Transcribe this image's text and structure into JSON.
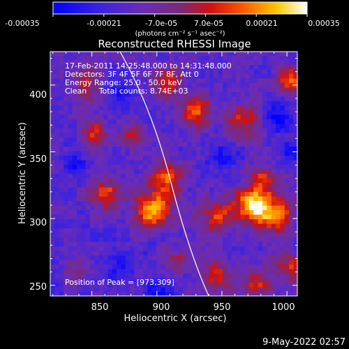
{
  "colorbar": {
    "ticks": [
      "-0.00035",
      "-0.00021",
      "-7.0e-05",
      "7.0e-05",
      "0.00021",
      "0.00035"
    ],
    "unit": "(photons cm⁻² s⁻¹ asec⁻²)"
  },
  "chart_data": {
    "type": "heatmap",
    "title": "Reconstructed RHESSI Image",
    "xlabel": "Heliocentric X (arcsec)",
    "ylabel": "Heliocentric Y (arcsec)",
    "xlim": [
      818,
      1008
    ],
    "ylim": [
      242,
      425
    ],
    "xticks": [
      "850",
      "900",
      "950",
      "1000"
    ],
    "yticks": [
      "250",
      "300",
      "350",
      "400"
    ],
    "color_range": [
      -0.00035,
      0.00035
    ],
    "colormap": "blue-purple-red-yellow-white",
    "peak": {
      "x": 973,
      "y": 309
    },
    "annotations": [
      "17-Feb-2011 14:25:48.000 to 14:31:48.000",
      "Detectors: 3F 4F 5F 6F 7F 8F, Att 0",
      "Energy Range: 25.0 - 50.0 keV",
      "Clean     Total counts: 8.74E+03"
    ],
    "peak_label": "Position of Peak = [973,309]"
  },
  "footer": {
    "date": "9-May-2022 02:57"
  }
}
